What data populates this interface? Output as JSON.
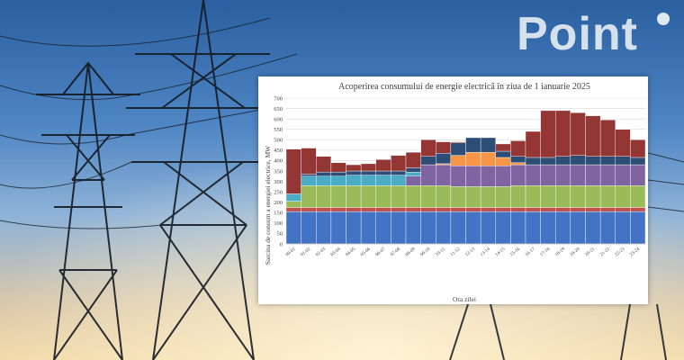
{
  "branding": {
    "logo_text": "Point"
  },
  "chart_data": {
    "type": "bar",
    "stacked": true,
    "title": "Acoperirea consumului de energie electrică în ziua de 1 ianuarie 2025",
    "xlabel": "Ora zilei",
    "ylabel": "Sarcina de consum a energiei electrice, MW",
    "ylim": [
      0,
      700
    ],
    "yticks": [
      0,
      50,
      100,
      150,
      200,
      250,
      300,
      350,
      400,
      450,
      500,
      550,
      600,
      650,
      700
    ],
    "grid": true,
    "legend": "none",
    "categories": [
      "00-01",
      "01-02",
      "02-03",
      "03-04",
      "04-05",
      "05-06",
      "06-07",
      "07-08",
      "08-09",
      "09-10",
      "10-11",
      "11-12",
      "12-13",
      "13-14",
      "14-15",
      "15-16",
      "16-17",
      "17-18",
      "18-19",
      "19-20",
      "20-21",
      "21-22",
      "22-23",
      "23-24"
    ],
    "series": [
      {
        "color": "#4472c4",
        "values": [
          155,
          155,
          155,
          155,
          155,
          155,
          155,
          155,
          155,
          155,
          155,
          155,
          155,
          155,
          155,
          155,
          155,
          155,
          155,
          155,
          155,
          155,
          155,
          155
        ]
      },
      {
        "color": "#c0504d",
        "values": [
          20,
          20,
          20,
          20,
          20,
          20,
          20,
          20,
          20,
          20,
          20,
          20,
          20,
          20,
          20,
          20,
          20,
          20,
          20,
          20,
          20,
          20,
          20,
          20
        ]
      },
      {
        "color": "#9bbb59",
        "values": [
          30,
          105,
          105,
          105,
          105,
          105,
          105,
          105,
          105,
          105,
          105,
          100,
          100,
          100,
          100,
          105,
          105,
          105,
          105,
          105,
          105,
          105,
          105,
          105
        ]
      },
      {
        "color": "#8064a2",
        "values": [
          0,
          0,
          0,
          0,
          0,
          0,
          0,
          0,
          45,
          100,
          100,
          100,
          100,
          100,
          100,
          100,
          100,
          100,
          100,
          100,
          100,
          100,
          100,
          100
        ]
      },
      {
        "color": "#f79646",
        "values": [
          0,
          0,
          0,
          0,
          0,
          0,
          0,
          0,
          0,
          0,
          5,
          50,
          65,
          65,
          40,
          10,
          0,
          0,
          0,
          0,
          0,
          0,
          0,
          0
        ]
      },
      {
        "color": "#4bacc6",
        "values": [
          35,
          45,
          45,
          45,
          50,
          50,
          50,
          50,
          20,
          0,
          0,
          0,
          0,
          0,
          0,
          0,
          0,
          0,
          0,
          0,
          0,
          0,
          0,
          0
        ]
      },
      {
        "color": "#2c4d75",
        "values": [
          0,
          10,
          20,
          20,
          20,
          20,
          20,
          20,
          20,
          40,
          50,
          60,
          70,
          70,
          30,
          30,
          35,
          35,
          40,
          45,
          40,
          40,
          40,
          35
        ]
      },
      {
        "color": "#943634",
        "values": [
          215,
          125,
          75,
          45,
          30,
          35,
          55,
          75,
          75,
          80,
          55,
          5,
          0,
          0,
          35,
          75,
          125,
          225,
          220,
          205,
          195,
          175,
          130,
          85
        ]
      }
    ]
  }
}
